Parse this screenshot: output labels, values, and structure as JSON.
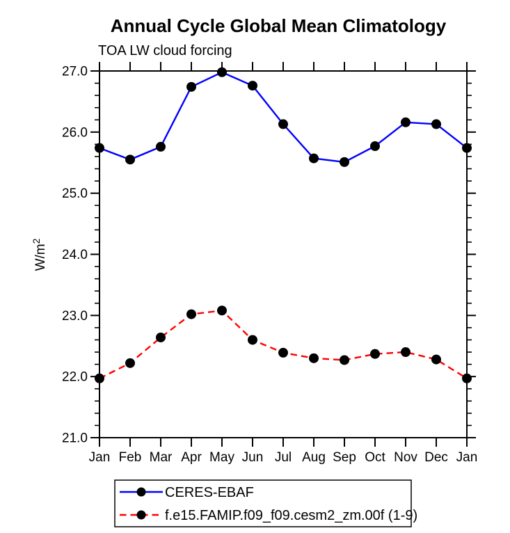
{
  "figure": {
    "title": "Annual Cycle Global Mean Climatology",
    "subtitle": "TOA LW cloud forcing"
  },
  "chart_data": {
    "type": "line",
    "title": "Annual Cycle Global Mean Climatology",
    "subtitle": "TOA LW cloud forcing",
    "ylabel": "W/m²",
    "ylabel_base": "W/m",
    "ylabel_exp": "2",
    "ylim": [
      21.0,
      27.0
    ],
    "y_major_step": 1.0,
    "y_minor_step": 0.2,
    "y_tick_labels": [
      "21.0",
      "22.0",
      "23.0",
      "24.0",
      "25.0",
      "26.0",
      "27.0"
    ],
    "x_tick_labels": [
      "Jan",
      "Feb",
      "Mar",
      "Apr",
      "May",
      "Jun",
      "Jul",
      "Aug",
      "Sep",
      "Oct",
      "Nov",
      "Dec",
      "Jan"
    ],
    "grid": false,
    "legend_position": "bottom-left-box",
    "series": [
      {
        "name": "CERES-EBAF",
        "color": "#0000ff",
        "line_style": "solid",
        "marker": "filled-circle",
        "marker_color": "#000000",
        "values": [
          25.74,
          25.55,
          25.76,
          26.74,
          26.98,
          26.76,
          26.13,
          25.57,
          25.51,
          25.77,
          26.16,
          26.13,
          25.74
        ]
      },
      {
        "name": "f.e15.FAMIP.f09_f09.cesm2_zm.00f (1-9)",
        "color": "#ff0000",
        "line_style": "dashed",
        "marker": "filled-circle",
        "marker_color": "#000000",
        "values": [
          21.97,
          22.22,
          22.64,
          23.02,
          23.08,
          22.6,
          22.39,
          22.3,
          22.27,
          22.37,
          22.4,
          22.28,
          21.97
        ]
      }
    ]
  }
}
